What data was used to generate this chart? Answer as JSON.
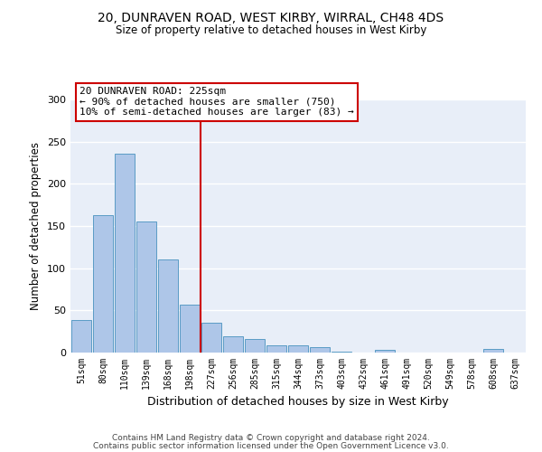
{
  "title_line1": "20, DUNRAVEN ROAD, WEST KIRBY, WIRRAL, CH48 4DS",
  "title_line2": "Size of property relative to detached houses in West Kirby",
  "xlabel": "Distribution of detached houses by size in West Kirby",
  "ylabel": "Number of detached properties",
  "categories": [
    "51sqm",
    "80sqm",
    "110sqm",
    "139sqm",
    "168sqm",
    "198sqm",
    "227sqm",
    "256sqm",
    "285sqm",
    "315sqm",
    "344sqm",
    "373sqm",
    "403sqm",
    "432sqm",
    "461sqm",
    "491sqm",
    "520sqm",
    "549sqm",
    "578sqm",
    "608sqm",
    "637sqm"
  ],
  "values": [
    39,
    163,
    236,
    155,
    110,
    57,
    35,
    19,
    16,
    9,
    9,
    6,
    1,
    0,
    3,
    0,
    0,
    0,
    0,
    4,
    0
  ],
  "bar_color": "#AEC6E8",
  "bar_edge_color": "#5A9CC5",
  "vline_index": 6,
  "vline_color": "#CC0000",
  "annotation_text": "20 DUNRAVEN ROAD: 225sqm\n← 90% of detached houses are smaller (750)\n10% of semi-detached houses are larger (83) →",
  "annotation_box_color": "#CC0000",
  "ylim": [
    0,
    300
  ],
  "yticks": [
    0,
    50,
    100,
    150,
    200,
    250,
    300
  ],
  "background_color": "#E8EEF8",
  "grid_color": "#FFFFFF",
  "footer_line1": "Contains HM Land Registry data © Crown copyright and database right 2024.",
  "footer_line2": "Contains public sector information licensed under the Open Government Licence v3.0."
}
